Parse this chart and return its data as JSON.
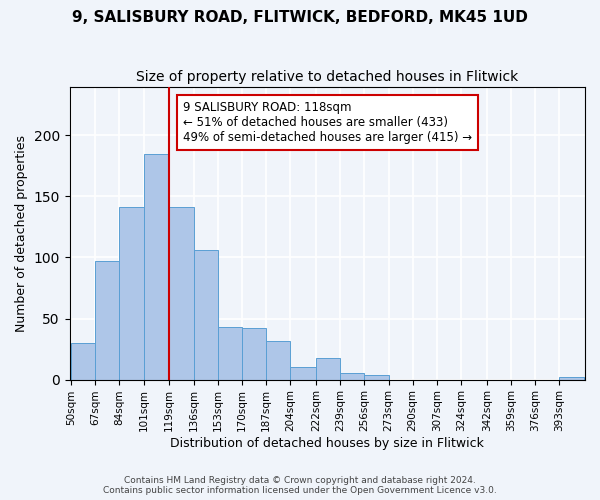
{
  "title": "9, SALISBURY ROAD, FLITWICK, BEDFORD, MK45 1UD",
  "subtitle": "Size of property relative to detached houses in Flitwick",
  "xlabel": "Distribution of detached houses by size in Flitwick",
  "ylabel": "Number of detached properties",
  "bin_labels": [
    "50sqm",
    "67sqm",
    "84sqm",
    "101sqm",
    "119sqm",
    "136sqm",
    "153sqm",
    "170sqm",
    "187sqm",
    "204sqm",
    "222sqm",
    "239sqm",
    "256sqm",
    "273sqm",
    "290sqm",
    "307sqm",
    "324sqm",
    "342sqm",
    "359sqm",
    "376sqm",
    "393sqm"
  ],
  "bin_edges": [
    50,
    67,
    84,
    101,
    119,
    136,
    153,
    170,
    187,
    204,
    222,
    239,
    256,
    273,
    290,
    307,
    324,
    342,
    359,
    376,
    393,
    410
  ],
  "bar_heights": [
    30,
    97,
    141,
    185,
    141,
    106,
    43,
    42,
    32,
    10,
    18,
    5,
    4,
    0,
    0,
    0,
    0,
    0,
    0,
    0,
    2
  ],
  "bar_color": "#aec6e8",
  "bar_edge_color": "#5a9fd4",
  "property_line_x": 119,
  "property_line_color": "#cc0000",
  "annotation_box_text": "9 SALISBURY ROAD: 118sqm\n← 51% of detached houses are smaller (433)\n49% of semi-detached houses are larger (415) →",
  "ylim": [
    0,
    240
  ],
  "footer_line1": "Contains HM Land Registry data © Crown copyright and database right 2024.",
  "footer_line2": "Contains public sector information licensed under the Open Government Licence v3.0.",
  "background_color": "#f0f4fa",
  "grid_color": "#ffffff",
  "title_fontsize": 11,
  "subtitle_fontsize": 10
}
